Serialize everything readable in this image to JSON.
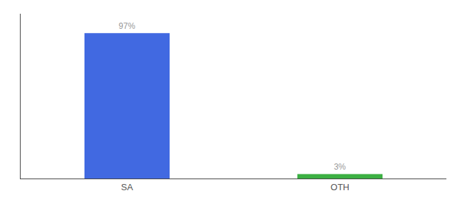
{
  "chart_data": {
    "type": "bar",
    "categories": [
      "SA",
      "OTH"
    ],
    "values": [
      97,
      3
    ],
    "value_labels": [
      "97%",
      "3%"
    ],
    "colors": [
      "#4169e1",
      "#3cb043"
    ],
    "ylim": [
      0,
      110
    ],
    "data_labels": true,
    "tick_labels": "x",
    "grid": false
  }
}
